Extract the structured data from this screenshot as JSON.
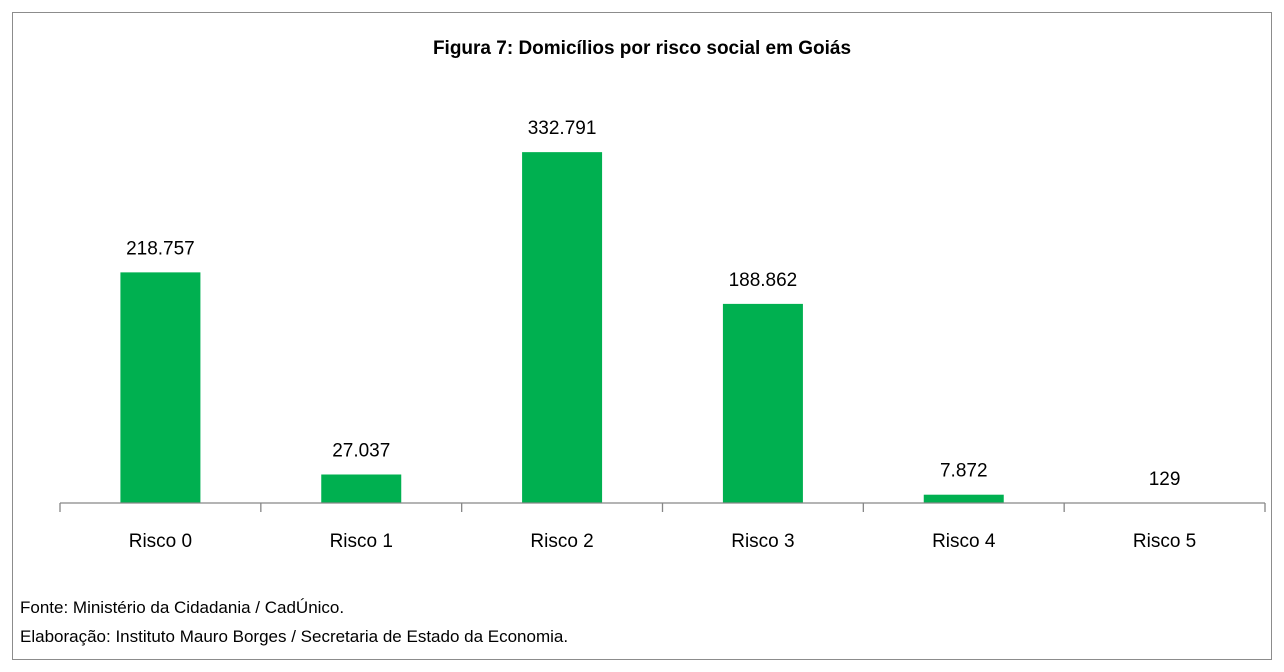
{
  "chart_data": {
    "type": "bar",
    "title": "Figura 7: Domicílios por risco social em Goiás",
    "categories": [
      "Risco 0",
      "Risco 1",
      "Risco 2",
      "Risco 3",
      "Risco 4",
      "Risco 5"
    ],
    "values": [
      218757,
      27037,
      332791,
      188862,
      7872,
      129
    ],
    "value_labels": [
      "218.757",
      "27.037",
      "332.791",
      "188.862",
      "7.872",
      "129"
    ],
    "xlabel": "",
    "ylabel": "",
    "ylim": [
      0,
      350000
    ],
    "grid": false,
    "legend": "none",
    "bar_color": "#00b050"
  },
  "footer": {
    "source": "Fonte: Ministério da Cidadania / CadÚnico.",
    "credits": "Elaboração: Instituto Mauro Borges / Secretaria de Estado da Economia."
  }
}
